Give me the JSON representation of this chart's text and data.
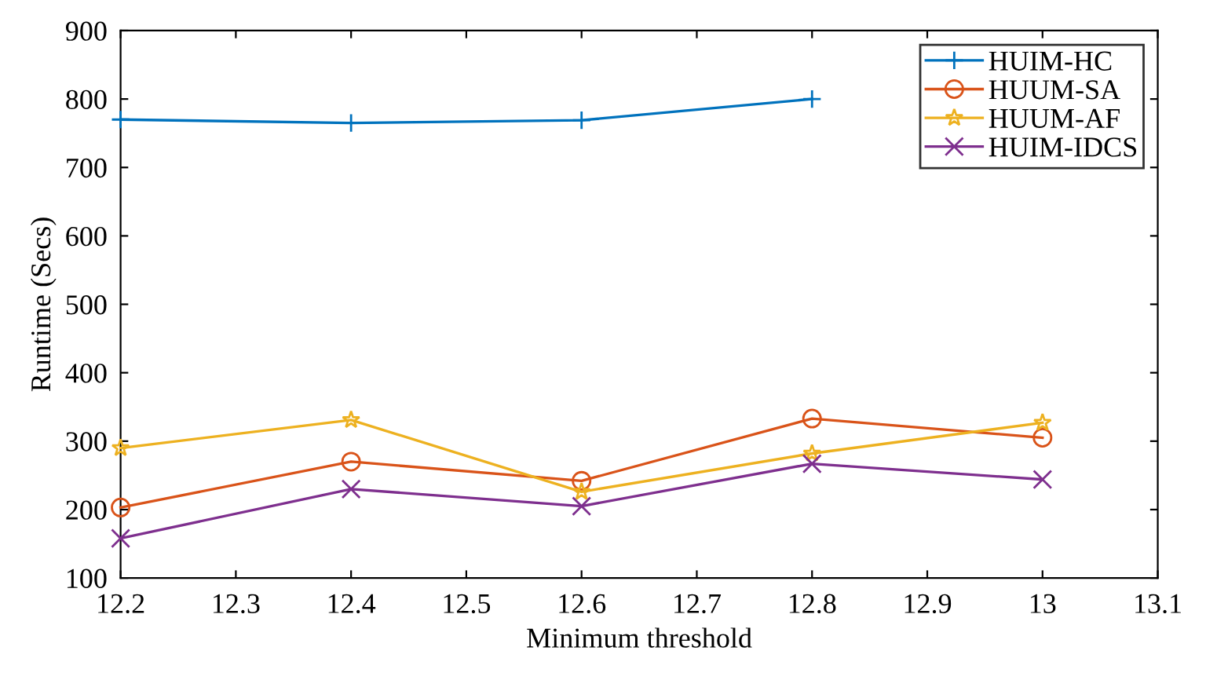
{
  "chart_data": {
    "type": "line",
    "xlabel": "Minimum threshold",
    "ylabel": "Runtime (Secs)",
    "x": [
      12.2,
      12.4,
      12.6,
      12.8,
      13.0
    ],
    "series": [
      {
        "name": "HUIM-HC",
        "color": "#0072bd",
        "marker": "plus",
        "values": [
          770,
          765,
          769,
          800,
          null
        ]
      },
      {
        "name": "HUUM-SA",
        "color": "#d95319",
        "marker": "circle",
        "values": [
          203,
          270,
          242,
          333,
          305
        ]
      },
      {
        "name": "HUUM-AF",
        "color": "#edb120",
        "marker": "star",
        "values": [
          290,
          331,
          226,
          282,
          327
        ]
      },
      {
        "name": "HUIM-IDCS",
        "color": "#7e2f8e",
        "marker": "cross",
        "values": [
          158,
          230,
          205,
          267,
          244
        ]
      }
    ],
    "xlim": [
      12.2,
      13.1
    ],
    "xticks": [
      12.2,
      12.3,
      12.4,
      12.5,
      12.6,
      12.7,
      12.8,
      12.9,
      13,
      13.1
    ],
    "ylim": [
      100,
      900
    ],
    "yticks": [
      100,
      200,
      300,
      400,
      500,
      600,
      700,
      800,
      900
    ],
    "grid": false,
    "legend": "top right",
    "line_style": "solid"
  }
}
